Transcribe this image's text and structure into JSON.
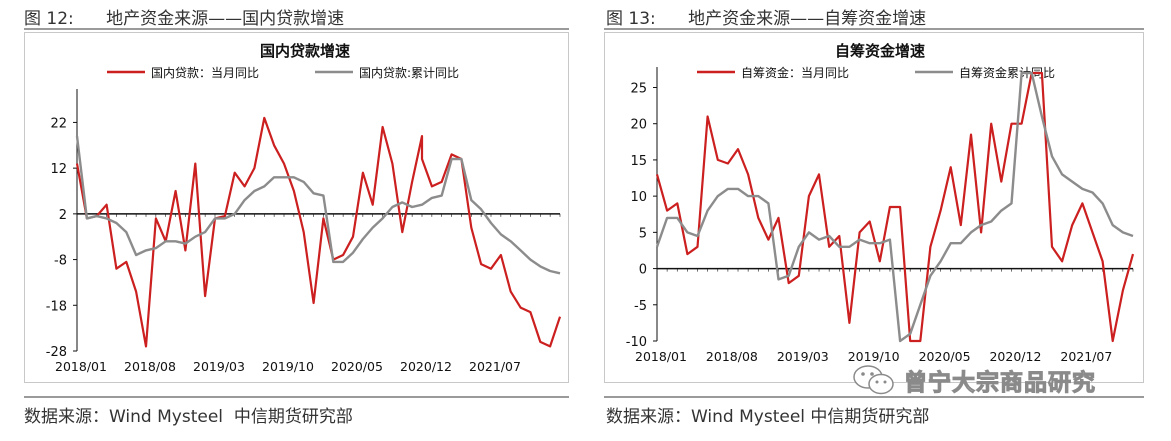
{
  "left": {
    "caption": "图 12:      地产资金来源——国内贷款增速",
    "source": "数据来源：Wind Mysteel  中信期货研究部"
  },
  "right": {
    "caption": "图 13:      地产资金来源——自筹资金增速",
    "source": "数据来源：Wind Mysteel 中信期货研究部"
  },
  "watermark": {
    "text": "曾宁大宗商品研究",
    "icon": "wechat-icon"
  },
  "colors": {
    "red": "#cc1f1f",
    "gray": "#8c8c8c"
  },
  "chart_data": [
    {
      "type": "line",
      "title": "国内贷款增速",
      "legend_placement": "top",
      "ylim": [
        -28,
        28
      ],
      "yticks": [
        22,
        12,
        2,
        -8,
        -18,
        -28
      ],
      "xtick_labels": [
        "2018/01",
        "2018/08",
        "2019/03",
        "2019/10",
        "2020/05",
        "2020/12",
        "2021/07"
      ],
      "x_range": [
        "2018/01",
        "2021/12"
      ],
      "baseline": 2,
      "series": [
        {
          "name": "国内贷款：当月同比",
          "color": "#cc1f1f",
          "points": [
            [
              "2018/01",
              13
            ],
            [
              "2018/02",
              1
            ],
            [
              "2018/03",
              1.5
            ],
            [
              "2018/04",
              4
            ],
            [
              "2018/05",
              -10
            ],
            [
              "2018/06",
              -8.5
            ],
            [
              "2018/07",
              -15
            ],
            [
              "2018/08",
              -27
            ],
            [
              "2018/09",
              1
            ],
            [
              "2018/10",
              -4
            ],
            [
              "2018/11",
              7
            ],
            [
              "2018/12",
              -6
            ],
            [
              "2019/01",
              13
            ],
            [
              "2019/02",
              -16
            ],
            [
              "2019/03",
              1
            ],
            [
              "2019/04",
              1.5
            ],
            [
              "2019/05",
              11
            ],
            [
              "2019/06",
              8
            ],
            [
              "2019/07",
              12
            ],
            [
              "2019/08",
              23
            ],
            [
              "2019/09",
              17
            ],
            [
              "2019/10",
              13
            ],
            [
              "2019/11",
              7
            ],
            [
              "2019/12",
              -2
            ],
            [
              "2020/01",
              -17.5
            ],
            [
              "2020/02",
              1
            ],
            [
              "2020/03",
              -8
            ],
            [
              "2020/04",
              -7
            ],
            [
              "2020/05",
              -3
            ],
            [
              "2020/06",
              11
            ],
            [
              "2020/07",
              4
            ],
            [
              "2020/08",
              21
            ],
            [
              "2020/09",
              13
            ],
            [
              "2020/10",
              -2
            ],
            [
              "2020/11",
              9
            ],
            [
              "2020/12",
              19
            ],
            [
              "2020/12",
              14
            ],
            [
              "2021/01",
              8
            ],
            [
              "2021/02",
              9
            ],
            [
              "2021/03",
              15
            ],
            [
              "2021/04",
              14
            ],
            [
              "2021/05",
              -1
            ],
            [
              "2021/06",
              -9
            ],
            [
              "2021/07",
              -10
            ],
            [
              "2021/08",
              -7
            ],
            [
              "2021/09",
              -15
            ],
            [
              "2021/10",
              -18.5
            ],
            [
              "2021/11",
              -19.5
            ],
            [
              "2021/12",
              -26
            ],
            [
              "2022/01",
              -27
            ],
            [
              "2022/02",
              -20.5
            ]
          ]
        },
        {
          "name": "国内贷款:累计同比",
          "color": "#8c8c8c",
          "points": [
            [
              "2018/01",
              19
            ],
            [
              "2018/02",
              1
            ],
            [
              "2018/03",
              1.5
            ],
            [
              "2018/04",
              1
            ],
            [
              "2018/05",
              0
            ],
            [
              "2018/06",
              -2
            ],
            [
              "2018/07",
              -7
            ],
            [
              "2018/08",
              -6
            ],
            [
              "2018/09",
              -5.5
            ],
            [
              "2018/10",
              -4
            ],
            [
              "2018/11",
              -4
            ],
            [
              "2018/12",
              -4.5
            ],
            [
              "2019/01",
              -3
            ],
            [
              "2019/02",
              -2
            ],
            [
              "2019/03",
              1
            ],
            [
              "2019/04",
              1
            ],
            [
              "2019/05",
              2
            ],
            [
              "2019/06",
              5
            ],
            [
              "2019/07",
              7
            ],
            [
              "2019/08",
              8
            ],
            [
              "2019/09",
              10
            ],
            [
              "2019/10",
              10
            ],
            [
              "2019/11",
              10
            ],
            [
              "2019/12",
              9
            ],
            [
              "2020/01",
              6.5
            ],
            [
              "2020/02",
              6
            ],
            [
              "2020/03",
              -8.5
            ],
            [
              "2020/04",
              -8.5
            ],
            [
              "2020/05",
              -6.5
            ],
            [
              "2020/06",
              -3.5
            ],
            [
              "2020/07",
              -1
            ],
            [
              "2020/08",
              1
            ],
            [
              "2020/09",
              3.5
            ],
            [
              "2020/10",
              4.5
            ],
            [
              "2020/11",
              3.5
            ],
            [
              "2020/12",
              4
            ],
            [
              "2021/01",
              5.5
            ],
            [
              "2021/02",
              6
            ],
            [
              "2021/03",
              14
            ],
            [
              "2021/04",
              14
            ],
            [
              "2021/05",
              5
            ],
            [
              "2021/06",
              3
            ],
            [
              "2021/07",
              0
            ],
            [
              "2021/08",
              -2.5
            ],
            [
              "2021/09",
              -4
            ],
            [
              "2021/10",
              -6
            ],
            [
              "2021/11",
              -8
            ],
            [
              "2021/12",
              -9.5
            ],
            [
              "2022/01",
              -10.5
            ],
            [
              "2022/02",
              -11
            ]
          ]
        }
      ]
    },
    {
      "type": "line",
      "title": "自筹资金增速",
      "legend_placement": "top",
      "ylim": [
        -10,
        27
      ],
      "yticks": [
        25,
        20,
        15,
        10,
        5,
        0,
        -5,
        -10
      ],
      "xtick_labels": [
        "2018/01",
        "2018/08",
        "2019/03",
        "2019/10",
        "2020/05",
        "2020/12",
        "2021/07"
      ],
      "baseline": 0,
      "series": [
        {
          "name": "自筹资金：当月同比",
          "color": "#cc1f1f",
          "points": [
            [
              "2018/01",
              13
            ],
            [
              "2018/02",
              8
            ],
            [
              "2018/03",
              9
            ],
            [
              "2018/04",
              2
            ],
            [
              "2018/05",
              3
            ],
            [
              "2018/06",
              21
            ],
            [
              "2018/07",
              15
            ],
            [
              "2018/08",
              14.5
            ],
            [
              "2018/09",
              16.5
            ],
            [
              "2018/10",
              13
            ],
            [
              "2018/11",
              7
            ],
            [
              "2018/12",
              4
            ],
            [
              "2019/01",
              7
            ],
            [
              "2019/02",
              -2
            ],
            [
              "2019/03",
              -1
            ],
            [
              "2019/04",
              10
            ],
            [
              "2019/05",
              13
            ],
            [
              "2019/06",
              3
            ],
            [
              "2019/07",
              4.5
            ],
            [
              "2019/08",
              -7.5
            ],
            [
              "2019/09",
              5
            ],
            [
              "2019/10",
              6.5
            ],
            [
              "2019/11",
              1
            ],
            [
              "2019/12",
              8.5
            ],
            [
              "2020/01",
              8.5
            ],
            [
              "2020/02",
              -10
            ],
            [
              "2020/03",
              -10
            ],
            [
              "2020/04",
              3
            ],
            [
              "2020/05",
              8
            ],
            [
              "2020/06",
              14
            ],
            [
              "2020/07",
              6
            ],
            [
              "2020/08",
              18.5
            ],
            [
              "2020/09",
              5
            ],
            [
              "2020/10",
              20
            ],
            [
              "2020/11",
              12
            ],
            [
              "2020/12",
              20
            ],
            [
              "2021/01",
              20
            ],
            [
              "2021/02",
              27
            ],
            [
              "2021/03",
              27
            ],
            [
              "2021/04",
              3
            ],
            [
              "2021/05",
              1
            ],
            [
              "2021/06",
              6
            ],
            [
              "2021/07",
              9
            ],
            [
              "2021/08",
              5
            ],
            [
              "2021/09",
              1
            ],
            [
              "2021/10",
              -10
            ],
            [
              "2021/11",
              -3
            ],
            [
              "2021/12",
              2
            ]
          ]
        },
        {
          "name": "自筹资金累计同比",
          "color": "#8c8c8c",
          "points": [
            [
              "2018/01",
              3
            ],
            [
              "2018/02",
              7
            ],
            [
              "2018/03",
              7
            ],
            [
              "2018/04",
              5
            ],
            [
              "2018/05",
              4.5
            ],
            [
              "2018/06",
              8
            ],
            [
              "2018/07",
              10
            ],
            [
              "2018/08",
              11
            ],
            [
              "2018/09",
              11
            ],
            [
              "2018/10",
              10
            ],
            [
              "2018/11",
              10
            ],
            [
              "2018/12",
              9
            ],
            [
              "2019/01",
              -1.5
            ],
            [
              "2019/02",
              -1
            ],
            [
              "2019/03",
              3
            ],
            [
              "2019/04",
              5
            ],
            [
              "2019/05",
              4
            ],
            [
              "2019/06",
              4.5
            ],
            [
              "2019/07",
              3
            ],
            [
              "2019/08",
              3
            ],
            [
              "2019/09",
              4
            ],
            [
              "2019/10",
              3.5
            ],
            [
              "2019/11",
              3.5
            ],
            [
              "2019/12",
              4
            ],
            [
              "2020/01",
              -10
            ],
            [
              "2020/02",
              -9
            ],
            [
              "2020/03",
              -5
            ],
            [
              "2020/04",
              -1
            ],
            [
              "2020/05",
              1
            ],
            [
              "2020/06",
              3.5
            ],
            [
              "2020/07",
              3.5
            ],
            [
              "2020/08",
              5
            ],
            [
              "2020/09",
              6
            ],
            [
              "2020/10",
              6.5
            ],
            [
              "2020/11",
              8
            ],
            [
              "2020/12",
              9
            ],
            [
              "2021/01",
              27
            ],
            [
              "2021/02",
              27
            ],
            [
              "2021/03",
              21
            ],
            [
              "2021/04",
              15.5
            ],
            [
              "2021/05",
              13
            ],
            [
              "2021/06",
              12
            ],
            [
              "2021/07",
              11
            ],
            [
              "2021/08",
              10.5
            ],
            [
              "2021/09",
              9
            ],
            [
              "2021/10",
              6
            ],
            [
              "2021/11",
              5
            ],
            [
              "2021/12",
              4.5
            ]
          ]
        }
      ]
    }
  ]
}
